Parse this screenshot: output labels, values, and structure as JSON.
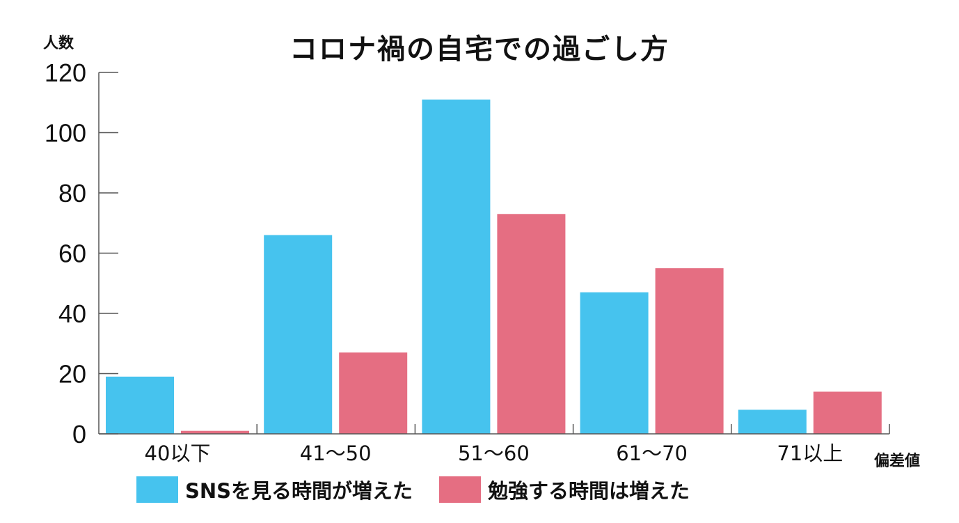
{
  "chart_data": {
    "type": "bar",
    "title": "コロナ禍の自宅での過ごし方",
    "ylabel": "人数",
    "xlabel": "偏差値",
    "categories": [
      "40以下",
      "41～50",
      "51～60",
      "61～70",
      "71以上"
    ],
    "ylim": [
      0,
      120
    ],
    "yticks": [
      "0",
      "20",
      "40",
      "60",
      "80",
      "100",
      "120"
    ],
    "series": [
      {
        "name": "SNSを見る時間が増えた",
        "color": "#46c3ee",
        "values": [
          19,
          66,
          111,
          47,
          8
        ]
      },
      {
        "name": "勉強する時間は増えた",
        "color": "#e56e82",
        "values": [
          1,
          27,
          73,
          55,
          14
        ]
      }
    ],
    "grid": false,
    "legend": "bottom"
  }
}
